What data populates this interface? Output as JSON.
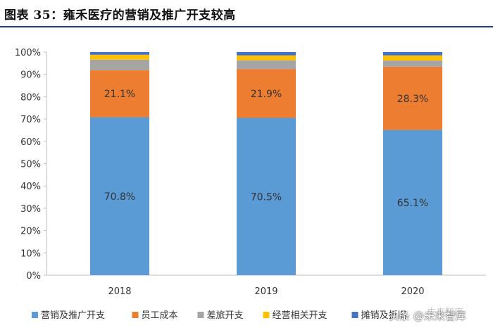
{
  "title": "图表 35：雍禾医疗的营销及推广开支较高",
  "chart_data": {
    "type": "bar",
    "stacked": true,
    "categories": [
      "2018",
      "2019",
      "2020"
    ],
    "series": [
      {
        "name": "营销及推广开支",
        "color": "#5b9bd5",
        "values": [
          70.8,
          70.5,
          65.1
        ],
        "labels": [
          "70.8%",
          "70.5%",
          "65.1%"
        ]
      },
      {
        "name": "员工成本",
        "color": "#ed7d31",
        "values": [
          21.1,
          21.9,
          28.3
        ],
        "labels": [
          "21.1%",
          "21.9%",
          "28.3%"
        ]
      },
      {
        "name": "差旅开支",
        "color": "#a5a5a5",
        "values": [
          4.7,
          3.9,
          2.8
        ],
        "labels": [
          "",
          "",
          ""
        ]
      },
      {
        "name": "经营相关开支",
        "color": "#ffc000",
        "values": [
          2.2,
          2.2,
          2.3
        ],
        "labels": [
          "",
          "",
          ""
        ]
      },
      {
        "name": "摊销及折旧",
        "color": "#4472c4",
        "values": [
          1.2,
          1.5,
          1.5
        ],
        "labels": [
          "",
          "",
          ""
        ]
      }
    ],
    "ylim": [
      0,
      100
    ],
    "yticks": [
      "0%",
      "10%",
      "20%",
      "30%",
      "40%",
      "50%",
      "60%",
      "70%",
      "80%",
      "90%",
      "100%"
    ],
    "legend_position": "bottom"
  },
  "watermark": {
    "text": "头条 @未来智库",
    "faint": "未来智库"
  }
}
